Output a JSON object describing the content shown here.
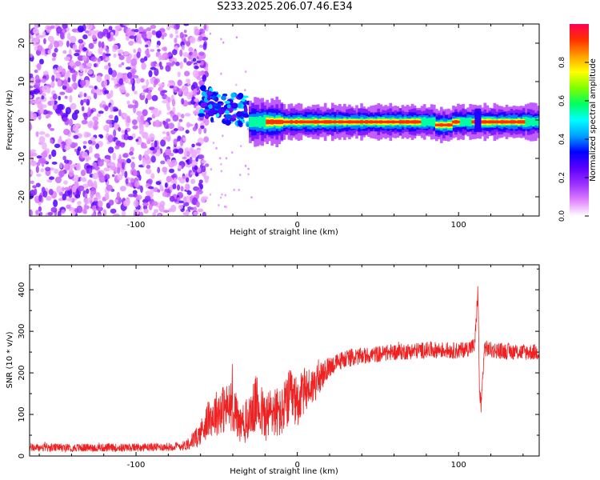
{
  "title": "S233.2025.206.07.46.E34",
  "chart_data": [
    {
      "type": "heatmap",
      "xlabel": "Height of straight line (km)",
      "ylabel": "Frequency (Hz)",
      "xlim": [
        -166,
        150
      ],
      "ylim": [
        -25,
        25
      ],
      "xticks": [
        -100,
        0,
        100
      ],
      "yticks": [
        -20,
        -10,
        0,
        10,
        20
      ],
      "colorbar": {
        "label": "Normalized spectral amplitude",
        "range": [
          0,
          1
        ],
        "ticks": [
          0.0,
          0.2,
          0.4,
          0.6,
          0.8
        ],
        "colors": [
          "#ffffff",
          "#e080ff",
          "#9b30ff",
          "#5a00ff",
          "#0000ff",
          "#00a0ff",
          "#00ffff",
          "#00ff60",
          "#80ff00",
          "#ffff00",
          "#ffa000",
          "#ff3000",
          "#ff0050"
        ]
      },
      "regions": [
        {
          "name": "noise",
          "x_range": [
            -166,
            -56
          ],
          "freq_range": [
            -25,
            25
          ],
          "amplitude": [
            0.05,
            0.3
          ]
        },
        {
          "name": "onset",
          "x_range": [
            -60,
            -30
          ],
          "freq_center": 3,
          "amplitude": [
            0.2,
            0.5
          ]
        },
        {
          "name": "signal-band",
          "x_range": [
            -30,
            150
          ],
          "freq_center": -0.5,
          "amplitude": [
            0.5,
            1.0
          ]
        }
      ]
    },
    {
      "type": "line",
      "xlabel": "Height of straight line (km)",
      "ylabel": "SNR (10 * v/v)",
      "xlim": [
        -166,
        150
      ],
      "ylim": [
        0,
        460
      ],
      "xticks": [
        -100,
        0,
        100
      ],
      "yticks": [
        0,
        100,
        200,
        300,
        400
      ],
      "color": "#ee2222",
      "x": [
        -166,
        -140,
        -110,
        -80,
        -70,
        -62,
        -55,
        -48,
        -40,
        -35,
        -30,
        -25,
        -20,
        -15,
        -10,
        -5,
        0,
        5,
        10,
        15,
        20,
        25,
        30,
        40,
        50,
        60,
        70,
        80,
        90,
        100,
        105,
        110,
        112,
        113,
        114,
        116,
        120,
        130,
        140,
        150
      ],
      "y": [
        20,
        20,
        20,
        22,
        25,
        45,
        90,
        110,
        120,
        70,
        90,
        130,
        90,
        110,
        100,
        140,
        130,
        160,
        170,
        190,
        215,
        225,
        235,
        240,
        245,
        250,
        252,
        255,
        255,
        253,
        258,
        265,
        400,
        150,
        120,
        260,
        255,
        252,
        250,
        250
      ],
      "noise_amplitude": [
        10,
        10,
        10,
        10,
        12,
        25,
        45,
        60,
        60,
        50,
        55,
        70,
        60,
        65,
        60,
        70,
        60,
        55,
        45,
        35,
        25,
        22,
        22,
        20,
        20,
        20,
        20,
        20,
        20,
        20,
        20,
        20,
        20,
        20,
        20,
        20,
        20,
        20,
        20,
        20
      ]
    }
  ]
}
